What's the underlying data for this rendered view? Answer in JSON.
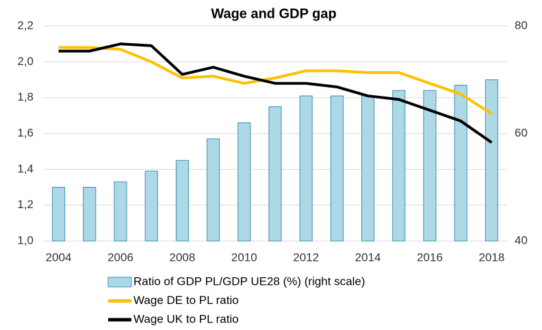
{
  "chart_data": {
    "type": "bar_line",
    "title": "Wage and GDP gap",
    "categories": [
      "2004",
      null,
      "2006",
      null,
      "2008",
      null,
      "2010",
      null,
      "2012",
      null,
      "2014",
      null,
      "2016",
      null,
      "2018"
    ],
    "series": [
      {
        "name": "Ratio of GDP PL/GDP UE28 (%) (right scale)",
        "type": "bar",
        "axis": "y2",
        "color": "#add8e6",
        "edge": "#3a8fb3",
        "values": [
          50,
          50,
          51,
          53,
          55,
          59,
          62,
          65,
          67,
          67,
          67,
          68,
          68,
          69,
          70
        ]
      },
      {
        "name": "Wage DE to PL ratio",
        "type": "line",
        "color": "#ffc000",
        "values": [
          2.08,
          2.08,
          2.07,
          2.0,
          1.91,
          1.92,
          1.88,
          1.91,
          1.95,
          1.95,
          1.94,
          1.94,
          1.88,
          1.82,
          1.71
        ]
      },
      {
        "name": "Wage UK to PL ratio",
        "type": "line",
        "color": "#000000",
        "values": [
          2.06,
          2.06,
          2.1,
          2.09,
          1.93,
          1.97,
          1.92,
          1.88,
          1.88,
          1.86,
          1.81,
          1.79,
          1.73,
          1.67,
          1.55
        ]
      }
    ],
    "ylim": [
      1.0,
      2.2
    ],
    "yticks": [
      {
        "value": 1.0,
        "label": "1,0"
      },
      {
        "value": 1.2,
        "label": "1,2"
      },
      {
        "value": 1.4,
        "label": "1,4"
      },
      {
        "value": 1.6,
        "label": "1,6"
      },
      {
        "value": 1.8,
        "label": "1,8"
      },
      {
        "value": 2.0,
        "label": "2,0"
      },
      {
        "value": 2.2,
        "label": "2,2"
      }
    ],
    "y2lim": [
      40,
      80
    ],
    "y2ticks": [
      40,
      60,
      80
    ],
    "grid": true,
    "legend": "bottom"
  }
}
